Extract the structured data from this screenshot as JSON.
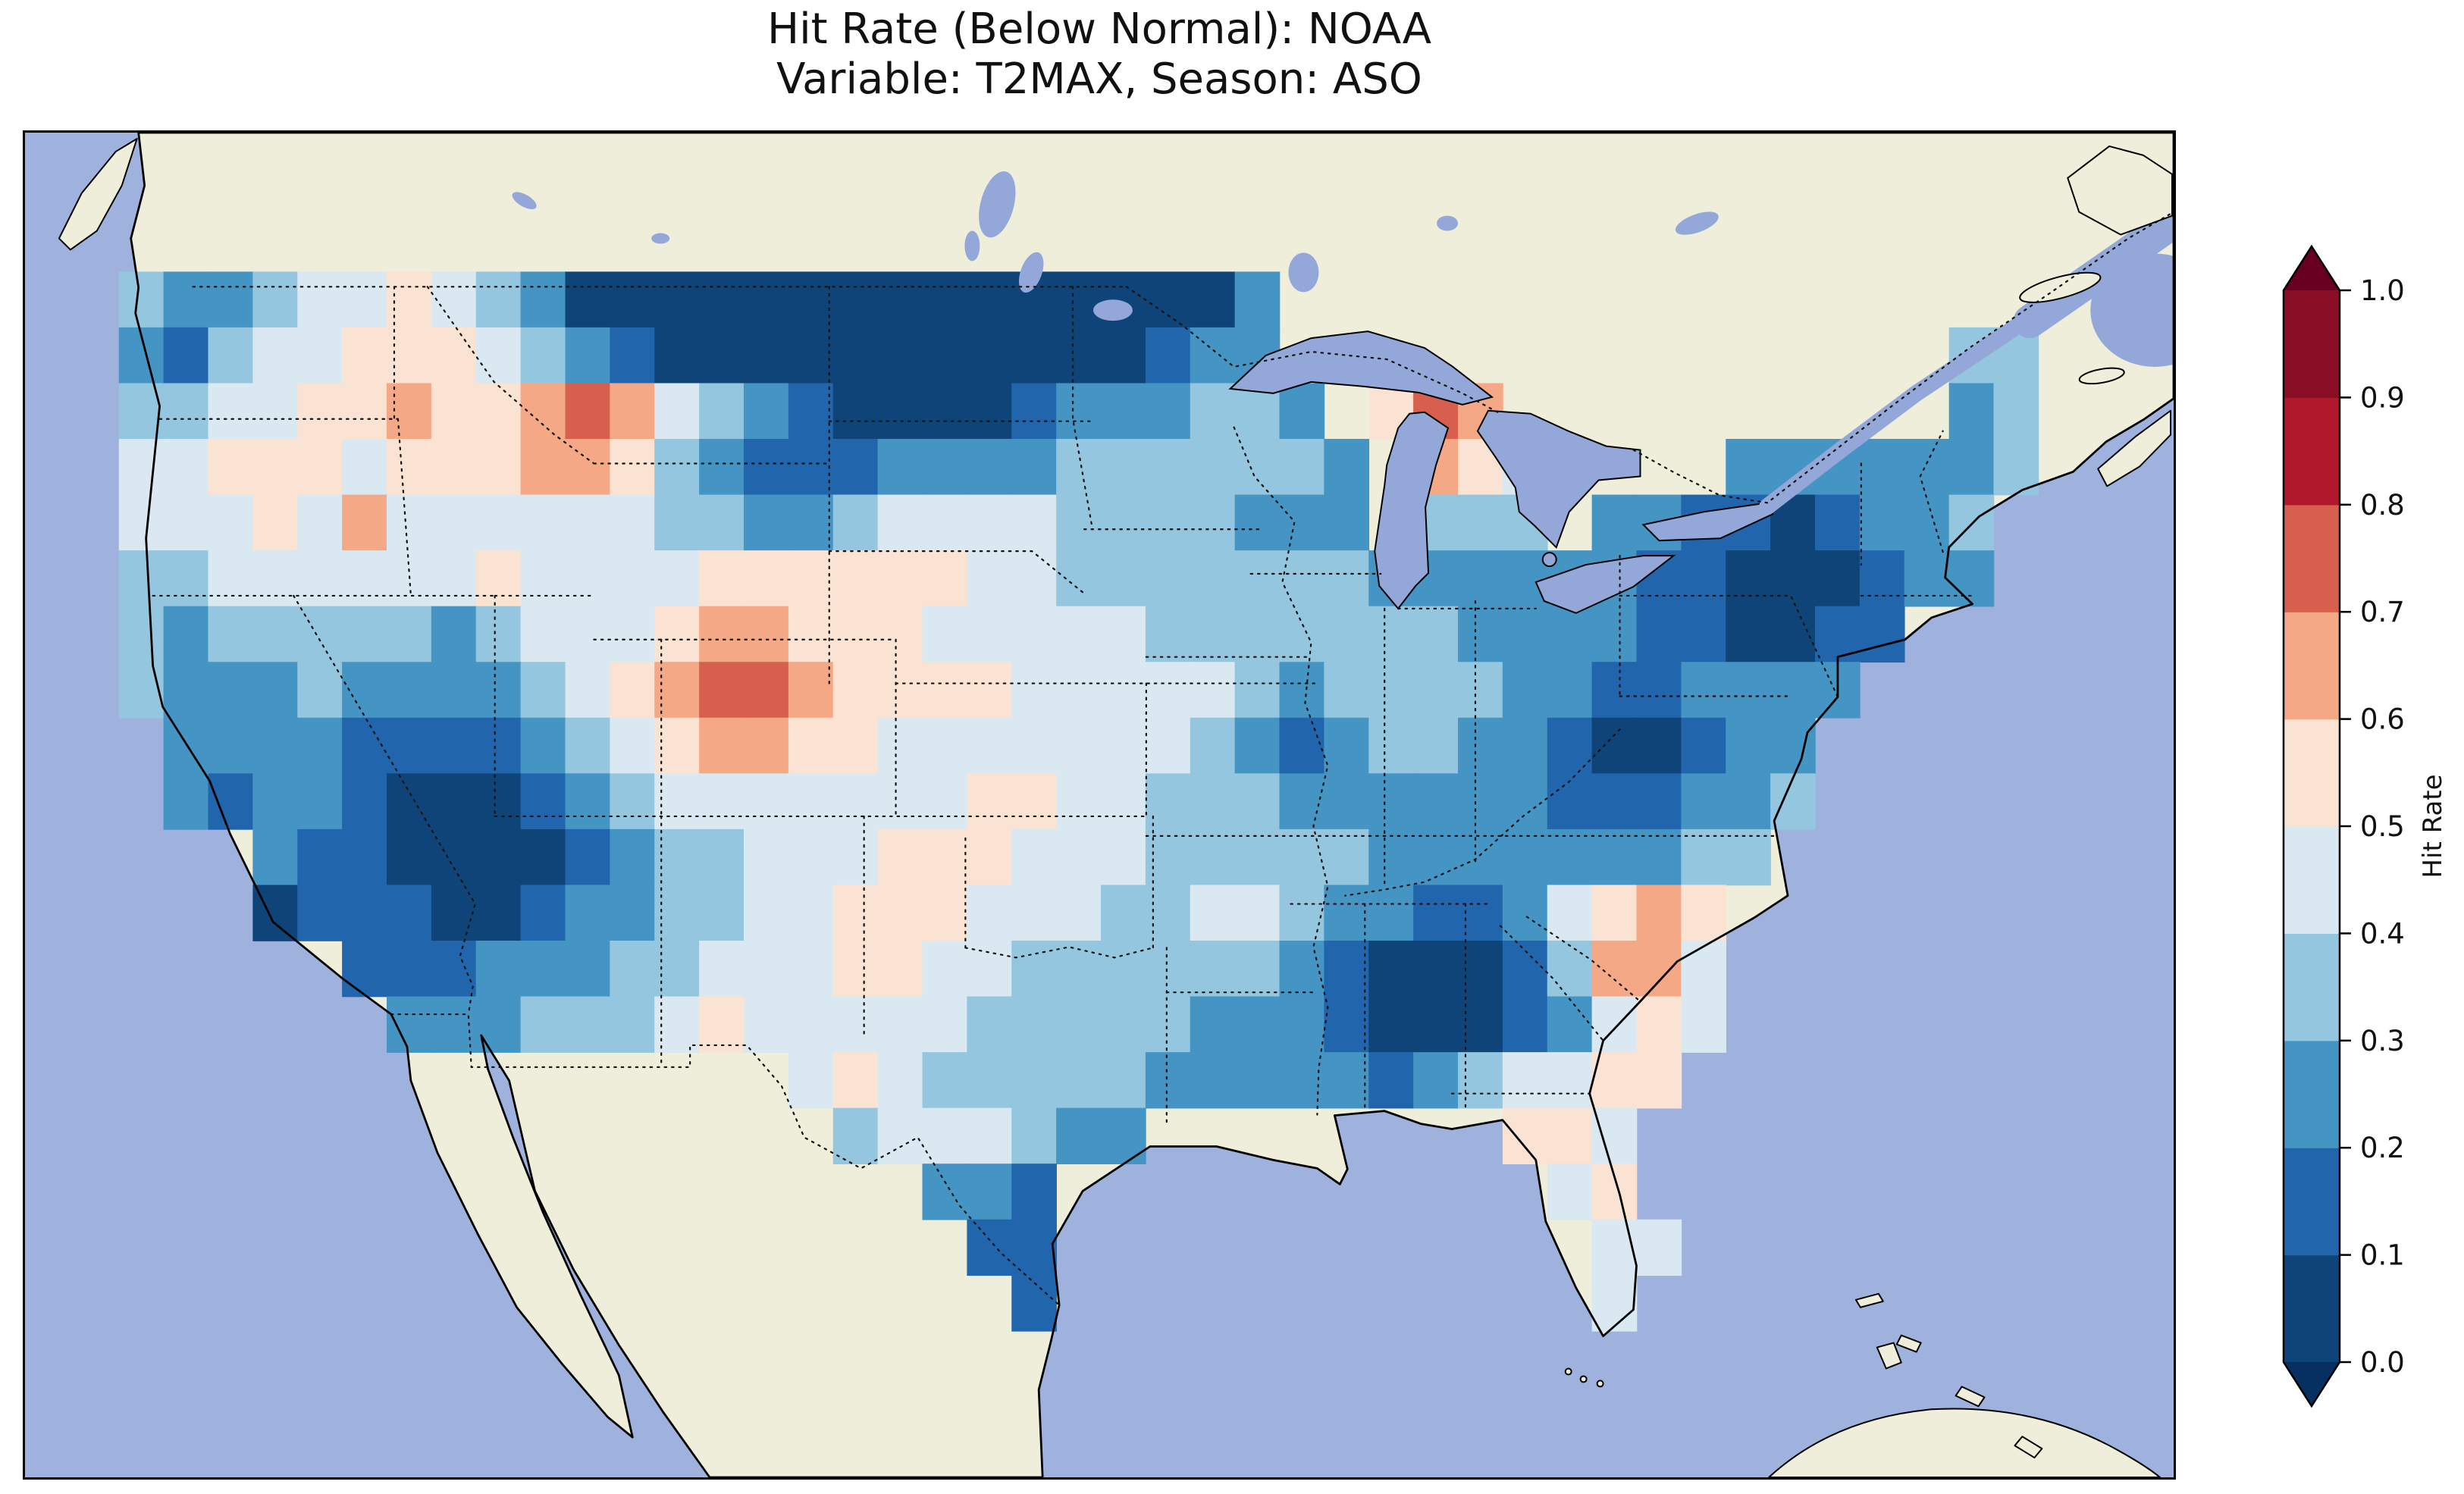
{
  "title": {
    "line1": "Hit Rate (Below Normal): NOAA",
    "line2": "Variable: T2MAX, Season: ASO"
  },
  "colorbar": {
    "label": "Hit Rate",
    "tick_labels_top_to_bottom": [
      "1.0",
      "0.9",
      "0.8",
      "0.7",
      "0.6",
      "0.5",
      "0.4",
      "0.3",
      "0.2",
      "0.1",
      "0.0"
    ],
    "band_colors_low_to_high": [
      "#0f4478",
      "#2166ac",
      "#4494c4",
      "#94c6df",
      "#d9e8f1",
      "#fbe3d4",
      "#f5a886",
      "#d6604d",
      "#b2182b",
      "#8a0f26"
    ],
    "under_color": "#053061",
    "over_color": "#67001f"
  },
  "map_colors": {
    "ocean": "#9fb1dd",
    "land": "#efeeda",
    "lakes": "#93a8d9",
    "coastline": "#000000",
    "state_borders": "#111111"
  },
  "chart_data": {
    "type": "heatmap",
    "title": "Hit Rate (Below Normal): NOAA",
    "subtitle": "Variable: T2MAX, Season: ASO",
    "metric": "Hit Rate (Below Normal)",
    "source": "NOAA",
    "variable": "T2MAX",
    "season": "ASO",
    "colorbar_label": "Hit Rate",
    "value_range": [
      0.0,
      1.0
    ],
    "band_boundaries": [
      0.0,
      0.1,
      0.2,
      0.3,
      0.4,
      0.5,
      0.6,
      0.7,
      0.8,
      0.9,
      1.0
    ],
    "colormap": "RdBu_r discrete (0.1-wide bands), extended triangles under 0.0 and over 1.0",
    "region": "Continental United States",
    "notable_features": [
      "very low hit rate (0.0-0.1) along Montana/North Dakota border strip",
      "very low hit rate blob over southern Nevada/Utah/northern Arizona",
      "very low hit rate blob over southern California",
      "very low hit rate blob over Alabama/western Georgia",
      "very low hit rate blob over New York/Pennsylvania/New Jersey",
      "very low hit rate blob over West Virginia/western Virginia",
      "high hit rate (0.6-0.8) spots over western Montana, central Colorado, northern Michigan, South Carolina"
    ],
    "grid": {
      "n_cols": 44,
      "n_rows": 19,
      "lon_west": -125.2,
      "lon_step_deg": 1.33,
      "lat_north": 49.35,
      "lat_step_deg": 1.265,
      "cell_encoding": "'.' = no data (outside CONUS); digit d = hit-rate band [d/10,(d+1)/10], approx value d/10+0.05",
      "rows_north_to_south": [
        "32234454320000000000000002...................",
        "21344555432100000000000122...............33.",
        "334455655676432100001222332.576..........23.",
        "4455545556653211122223333332.654....2222223.",
        "4445464444443322344443333222.333.221101223..",
        "334444445444455555544333333322222211000122..",
        "3233333234445665554444433333332222110011....",
        "322232222345677655554444432333322112222.....",
        ".2222111123456655444444432123322100122......",
        ".2122100012344444445544333222222111223......",
        "...2110000123344455544433333222222233.......",
        "...011100122334455544433443221124565........",
        ".....1112223344455443333332100013664........",
        "......222333454444433333222100012454........",
        "...............45433333222221234455.........",
        "................3444322........554..........",
        "..................221...........45..........",
        "...................11............44.........",
        "....................1............4.........."
      ]
    }
  }
}
